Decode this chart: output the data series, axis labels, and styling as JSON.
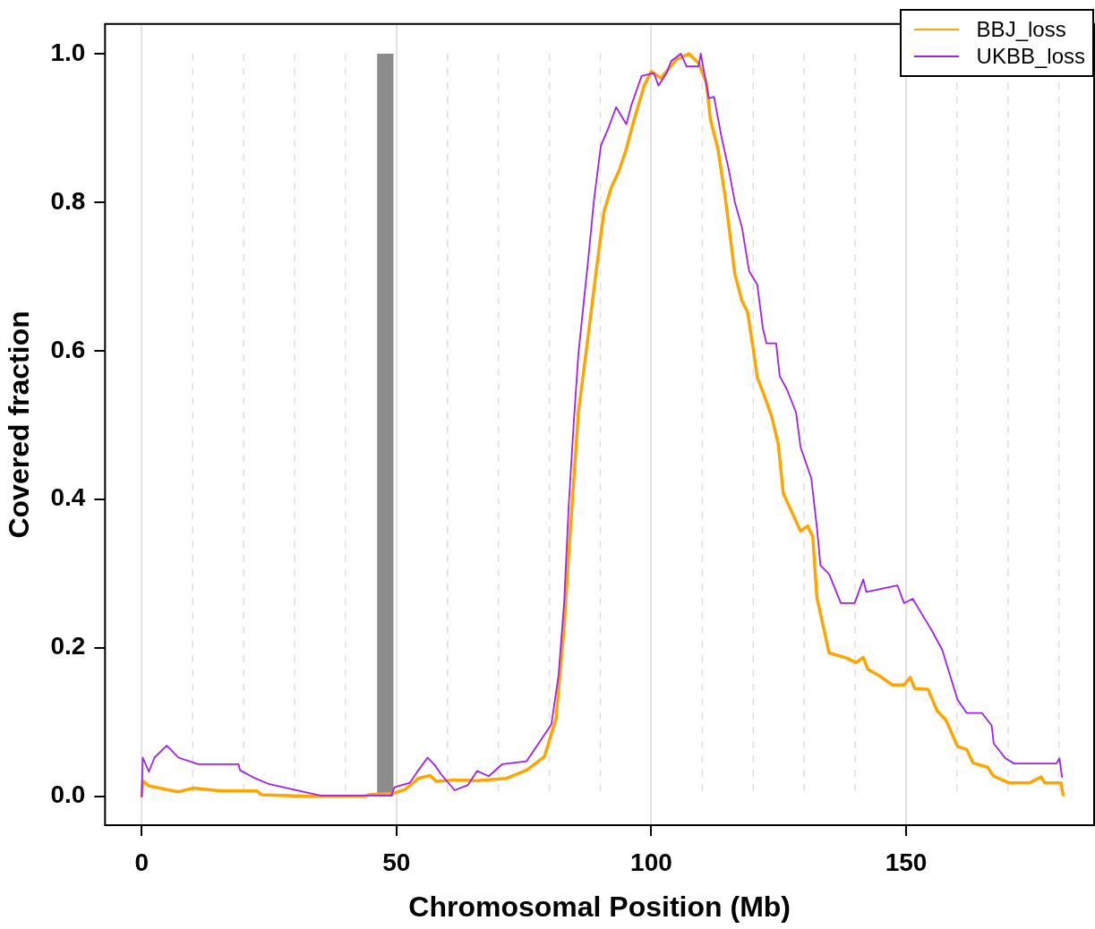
{
  "chart_data": {
    "type": "line",
    "xlabel": "Chromosomal Position (Mb)",
    "ylabel": "Covered fraction",
    "xlim": [
      -7.2,
      186.9
    ],
    "ylim": [
      -0.039,
      1.04
    ],
    "xticks": [
      0,
      50,
      100,
      150
    ],
    "yticks": [
      {
        "value": 0,
        "label": "0.0"
      },
      0.2,
      0.4,
      0.6,
      0.8,
      {
        "value": 1,
        "label": "1.0"
      }
    ],
    "grid": "x",
    "legend": "top right",
    "marker": "none",
    "line_style": "solid",
    "bands": [
      {
        "axis": "x",
        "from": 46.2,
        "to": 49.4,
        "color": "#8c8c8c"
      }
    ],
    "ref_lines": [
      {
        "axis": "x",
        "value": 10,
        "line_style": "dashed",
        "color": "#e0e0e0"
      },
      {
        "axis": "x",
        "value": 20,
        "line_style": "dashed",
        "color": "#e0e0e0"
      },
      {
        "axis": "x",
        "value": 30,
        "line_style": "dashed",
        "color": "#e0e0e0"
      },
      {
        "axis": "x",
        "value": 40,
        "line_style": "dashed",
        "color": "#e0e0e0"
      },
      {
        "axis": "x",
        "value": 60,
        "line_style": "dashed",
        "color": "#e0e0e0"
      },
      {
        "axis": "x",
        "value": 70,
        "line_style": "dashed",
        "color": "#e0e0e0"
      },
      {
        "axis": "x",
        "value": 80,
        "line_style": "dashed",
        "color": "#e0e0e0"
      },
      {
        "axis": "x",
        "value": 90,
        "line_style": "dashed",
        "color": "#e0e0e0"
      },
      {
        "axis": "x",
        "value": 110,
        "line_style": "dashed",
        "color": "#e0e0e0"
      },
      {
        "axis": "x",
        "value": 120,
        "line_style": "dashed",
        "color": "#e0e0e0"
      },
      {
        "axis": "x",
        "value": 130,
        "line_style": "dashed",
        "color": "#e0e0e0"
      },
      {
        "axis": "x",
        "value": 140,
        "line_style": "dashed",
        "color": "#e0e0e0"
      },
      {
        "axis": "x",
        "value": 160,
        "line_style": "dashed",
        "color": "#e0e0e0"
      },
      {
        "axis": "x",
        "value": 170,
        "line_style": "dashed",
        "color": "#e0e0e0"
      },
      {
        "axis": "x",
        "value": 180,
        "line_style": "dashed",
        "color": "#e0e0e0"
      }
    ],
    "series": [
      {
        "name": "BBJ_loss",
        "color": "#ffa500",
        "x": [
          0,
          0.2,
          1.4,
          4.9,
          7.2,
          10.2,
          15.5,
          22.6,
          23.5,
          32.3,
          43.7,
          44.6,
          49.4,
          51.7,
          54.3,
          56.6,
          57.8,
          61.4,
          65.8,
          71.6,
          75.5,
          79.0,
          81.3,
          82.9,
          83.8,
          84.8,
          85.7,
          87.3,
          89.2,
          90.7,
          92.1,
          93.7,
          95.1,
          96.5,
          98.6,
          100.0,
          101.9,
          104.9,
          107.4,
          109.3,
          110.8,
          111.6,
          113.1,
          114.5,
          115.5,
          116.4,
          117.8,
          118.9,
          120.1,
          120.8,
          122.2,
          123.6,
          124.9,
          125.9,
          127.7,
          129.3,
          130.7,
          131.7,
          132.5,
          134.9,
          138.4,
          140.2,
          141.6,
          142.5,
          144.8,
          147.3,
          149.6,
          150.8,
          151.7,
          154.3,
          156.1,
          157.8,
          160.1,
          161.9,
          163.1,
          166.0,
          167.2,
          170.2,
          174.2,
          176.5,
          177.2,
          180.4,
          180.8
        ],
        "values": [
          0,
          0.021,
          0.014,
          0.009,
          0.006,
          0.011,
          0.007,
          0.007,
          0.002,
          0,
          0,
          0.002,
          0.004,
          0.009,
          0.024,
          0.028,
          0.02,
          0.022,
          0.021,
          0.024,
          0.035,
          0.053,
          0.104,
          0.228,
          0.327,
          0.426,
          0.518,
          0.603,
          0.708,
          0.787,
          0.819,
          0.843,
          0.872,
          0.908,
          0.957,
          0.976,
          0.967,
          0.992,
          1.0,
          0.987,
          0.961,
          0.912,
          0.871,
          0.807,
          0.753,
          0.703,
          0.667,
          0.652,
          0.598,
          0.564,
          0.539,
          0.512,
          0.475,
          0.408,
          0.381,
          0.357,
          0.364,
          0.349,
          0.268,
          0.193,
          0.186,
          0.18,
          0.187,
          0.171,
          0.162,
          0.15,
          0.15,
          0.16,
          0.145,
          0.144,
          0.115,
          0.103,
          0.067,
          0.063,
          0.045,
          0.039,
          0.027,
          0.018,
          0.018,
          0.026,
          0.018,
          0.018,
          0.002
        ]
      },
      {
        "name": "UKBB_loss",
        "color": "#a020f0",
        "x": [
          0,
          0.2,
          1.4,
          2.5,
          4.9,
          5.8,
          7.2,
          11.1,
          19.0,
          19.3,
          21.7,
          24.7,
          30.5,
          35.1,
          49.0,
          49.6,
          52.6,
          54.3,
          56.1,
          57.5,
          58.7,
          61.4,
          64.0,
          65.8,
          68.1,
          70.7,
          75.5,
          80.4,
          81.8,
          82.9,
          83.8,
          84.8,
          85.7,
          86.8,
          87.7,
          88.7,
          90.1,
          91.7,
          93.1,
          95.1,
          96.1,
          98.1,
          100.5,
          101.4,
          103.0,
          103.9,
          105.8,
          106.9,
          109.3,
          109.7,
          110.1,
          111.3,
          112.3,
          113.8,
          115.2,
          116.4,
          117.8,
          119.2,
          120.8,
          121.9,
          122.6,
          124.5,
          125.2,
          126.6,
          128.4,
          129.3,
          131.4,
          132.5,
          133.2,
          134.9,
          137.2,
          139.9,
          141.6,
          142.2,
          148.3,
          149.6,
          151.3,
          153.4,
          154.9,
          157.1,
          160.1,
          161.9,
          164.9,
          166.8,
          167.2,
          169.5,
          171.2,
          179.5,
          180.1,
          180.6
        ],
        "values": [
          0,
          0.052,
          0.033,
          0.052,
          0.068,
          0.062,
          0.052,
          0.043,
          0.043,
          0.035,
          0.026,
          0.017,
          0.008,
          0.001,
          0.001,
          0.012,
          0.018,
          0.035,
          0.052,
          0.042,
          0.03,
          0.008,
          0.015,
          0.034,
          0.027,
          0.043,
          0.047,
          0.097,
          0.163,
          0.261,
          0.392,
          0.505,
          0.596,
          0.669,
          0.728,
          0.8,
          0.876,
          0.902,
          0.928,
          0.905,
          0.931,
          0.97,
          0.974,
          0.957,
          0.974,
          0.99,
          1.0,
          0.983,
          0.983,
          1.0,
          0.985,
          0.94,
          0.942,
          0.887,
          0.844,
          0.8,
          0.766,
          0.707,
          0.689,
          0.63,
          0.61,
          0.61,
          0.566,
          0.548,
          0.517,
          0.47,
          0.428,
          0.362,
          0.311,
          0.299,
          0.26,
          0.26,
          0.292,
          0.275,
          0.284,
          0.26,
          0.266,
          0.242,
          0.225,
          0.197,
          0.13,
          0.112,
          0.112,
          0.095,
          0.071,
          0.051,
          0.044,
          0.044,
          0.051,
          0.026
        ]
      }
    ]
  }
}
